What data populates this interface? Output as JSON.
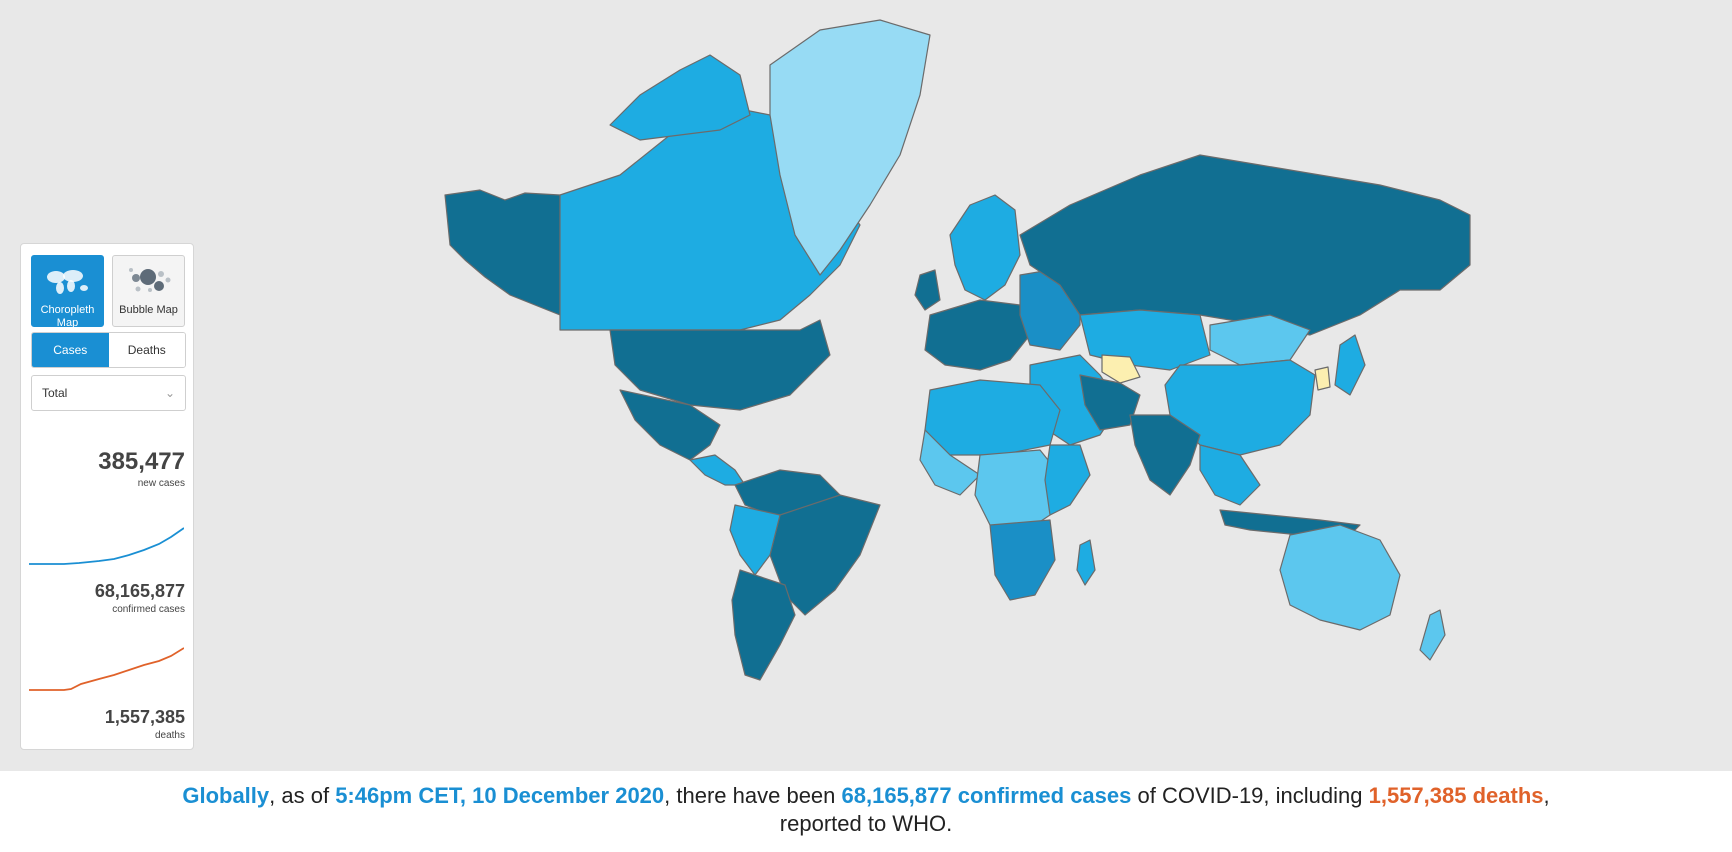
{
  "panel": {
    "map_buttons": [
      {
        "label": "Choropleth Map",
        "icon": "world-map-icon",
        "selected": true
      },
      {
        "label": "Bubble Map",
        "icon": "bubbles-icon",
        "selected": false
      }
    ],
    "metric_tabs": [
      {
        "label": "Cases",
        "selected": true
      },
      {
        "label": "Deaths",
        "selected": false
      }
    ],
    "period_select": {
      "value": "Total"
    },
    "stats": {
      "new_cases": {
        "value": "385,477",
        "label": "new cases"
      },
      "confirmed": {
        "value": "68,165,877",
        "label": "confirmed cases",
        "trend_color": "#1a8fd3"
      },
      "deaths": {
        "value": "1,557,385",
        "label": "deaths",
        "trend_color": "#e0622a"
      }
    }
  },
  "map": {
    "type": "choropleth world map",
    "colors": {
      "darkest": "#116f92",
      "dark": "#1a8fc6",
      "medium": "#1eace2",
      "light": "#5cc7ee",
      "lightest": "#97dbf4",
      "no_data": "#9a9a9a",
      "flagged": "#fcefb0",
      "background": "#e8e8e8"
    }
  },
  "caption": {
    "part1": "Globally",
    "part2": ", as of ",
    "part3": "5:46pm CET, 10 December 2020",
    "part4": ", there have been ",
    "part5": "68,165,877 confirmed cases",
    "part6": " of COVID-19, including ",
    "part7": "1,557,385 deaths",
    "part8": ",",
    "part9": "reported to WHO."
  }
}
